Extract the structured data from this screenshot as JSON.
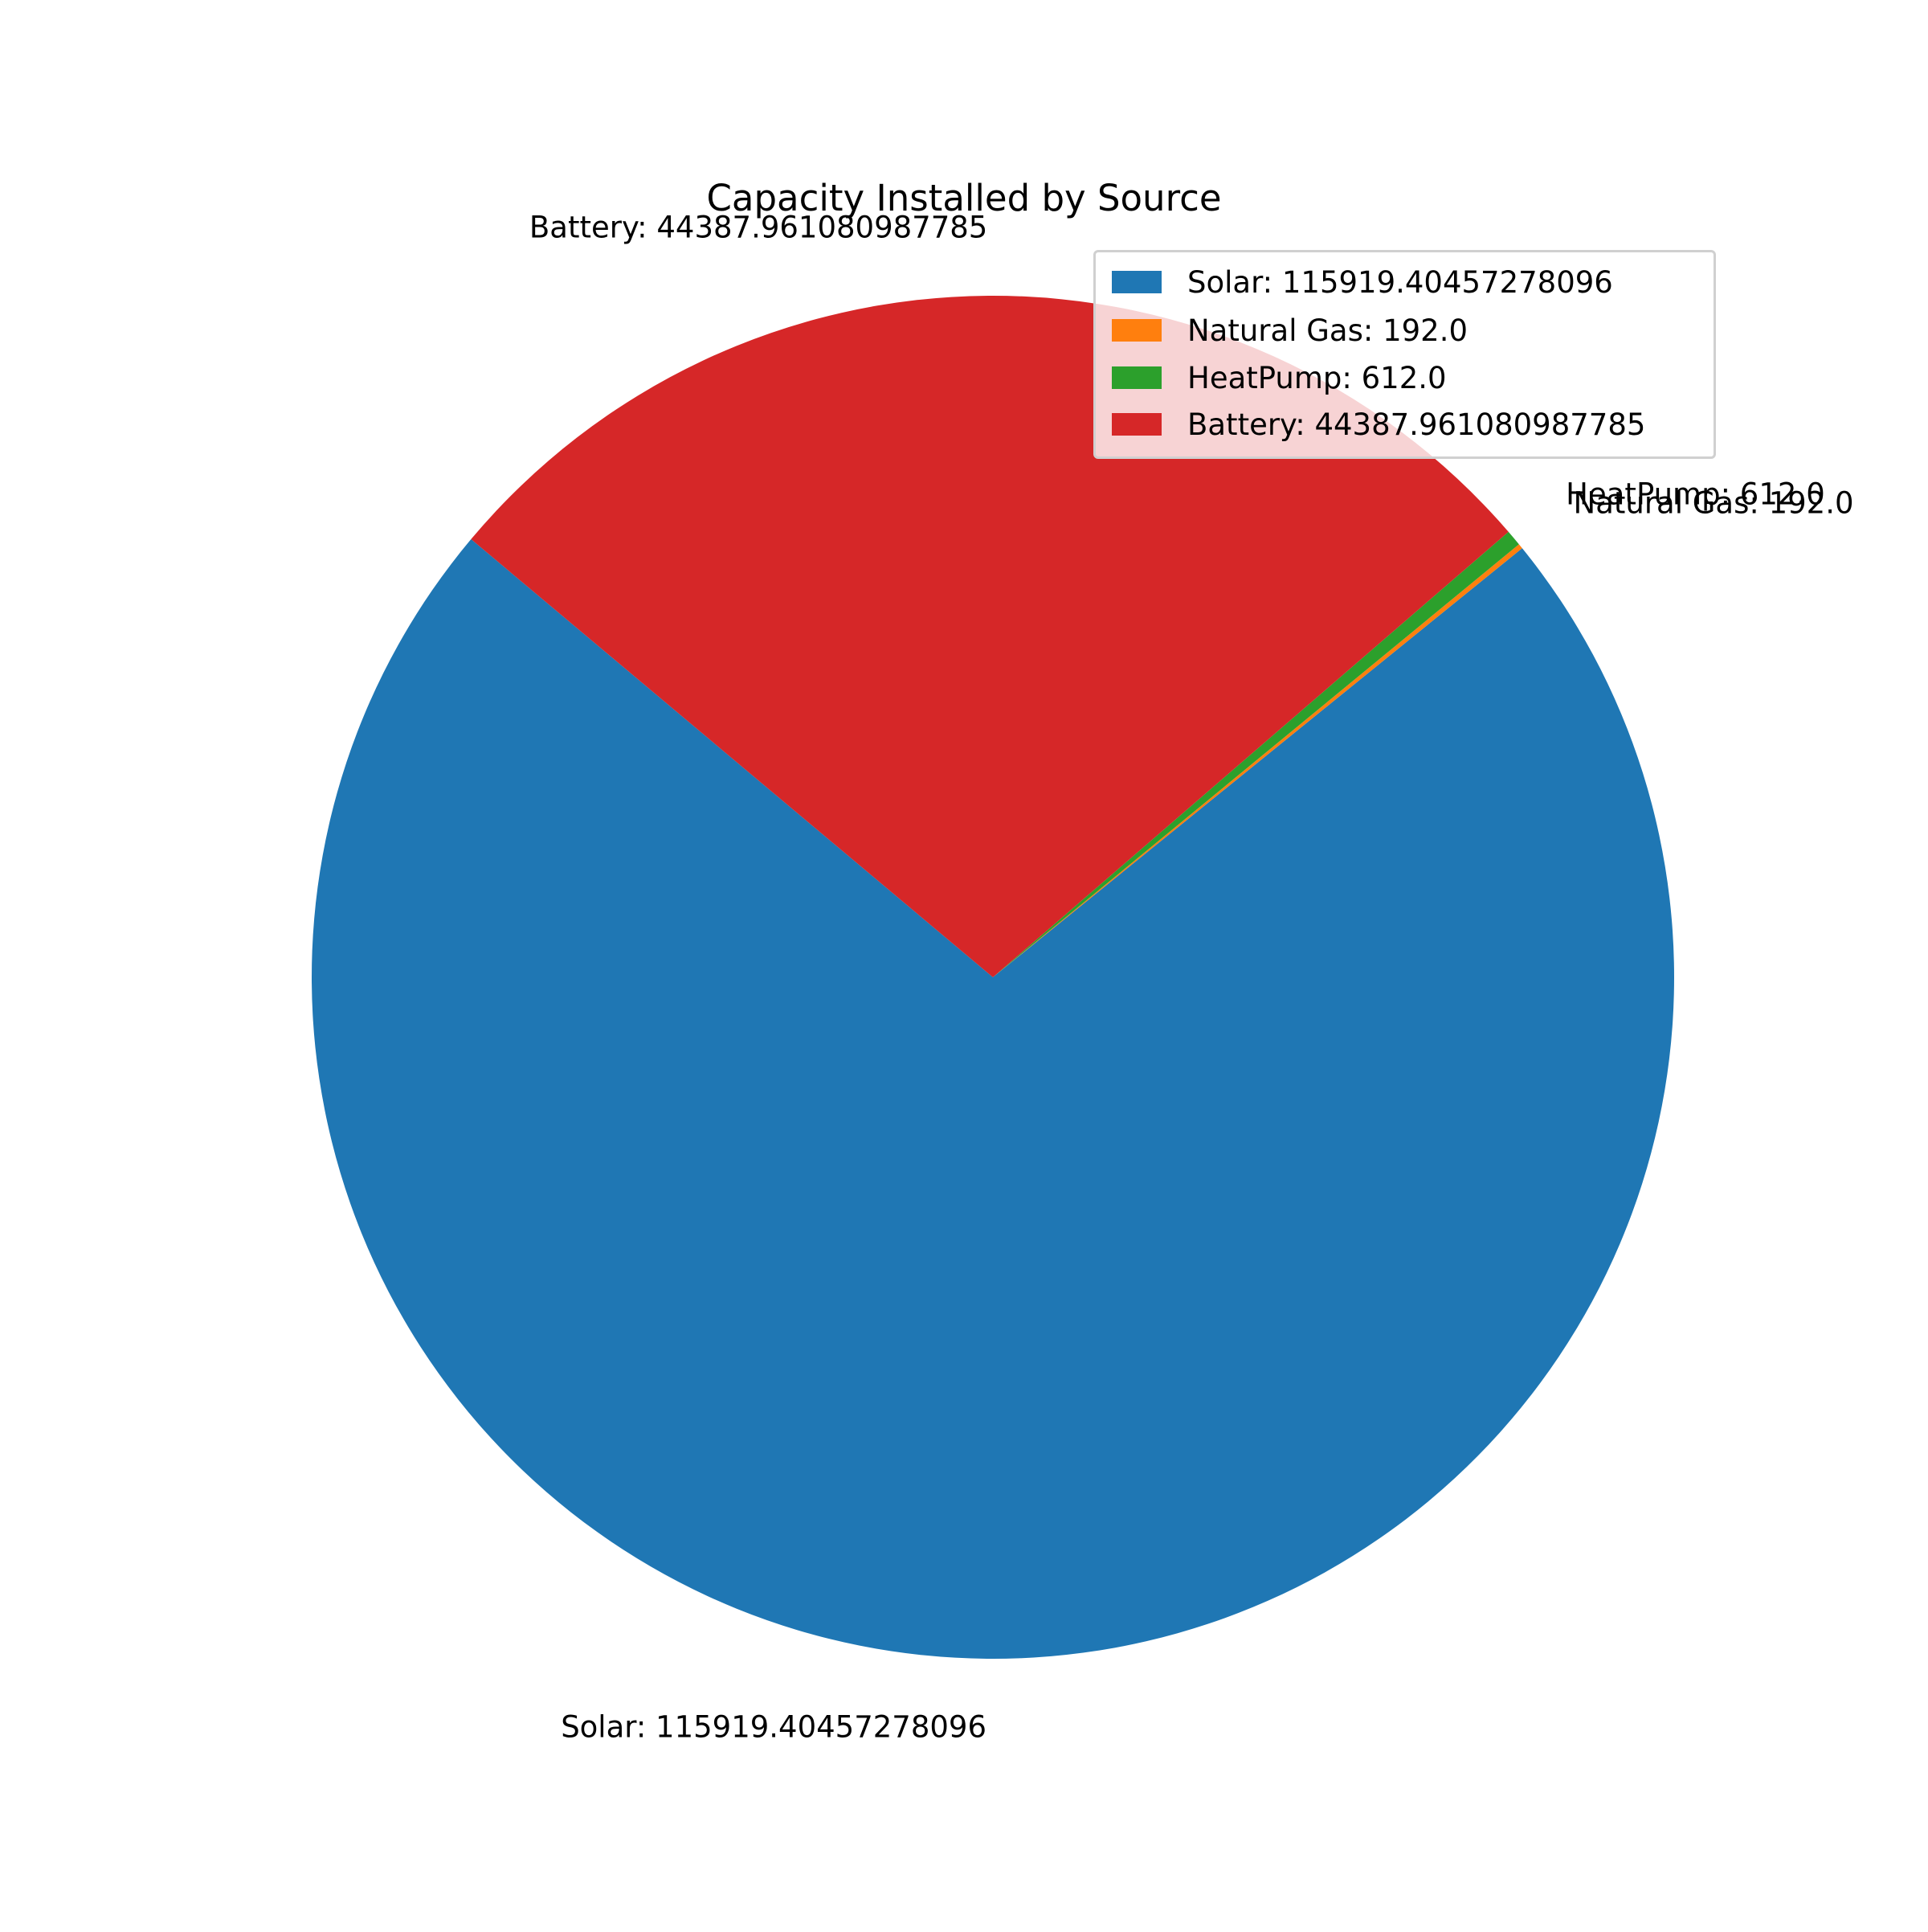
{
  "chart_data": {
    "type": "pie",
    "title": "Capacity Installed by Source",
    "start_angle_deg": 140,
    "counterclock": true,
    "slices": [
      {
        "label": "Solar",
        "value": 115919.40457278096,
        "color": "#1f77b4",
        "text": "Solar: 115919.40457278096"
      },
      {
        "label": "Natural Gas",
        "value": 192.0,
        "color": "#ff7f0e",
        "text": "Natural Gas: 192.0"
      },
      {
        "label": "HeatPump",
        "value": 612.0,
        "color": "#2ca02c",
        "text": "HeatPump: 612.0"
      },
      {
        "label": "Battery",
        "value": 44387.961080987785,
        "color": "#d62728",
        "text": "Battery: 44387.961080987785"
      }
    ],
    "legend": {
      "placement": "upper right",
      "entries": [
        "Solar: 115919.40457278096",
        "Natural Gas: 192.0",
        "HeatPump: 612.0",
        "Battery: 44387.961080987785"
      ]
    }
  }
}
